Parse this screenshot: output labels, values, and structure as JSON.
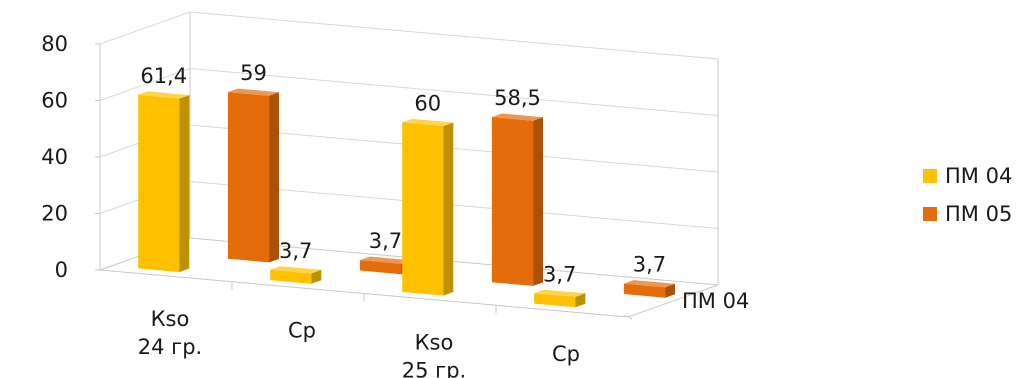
{
  "chart_data": {
    "type": "bar",
    "style": "3d-clustered-column",
    "categories": [
      "Кѕо\n24 гр.",
      "Ср",
      "Кѕо\n25 гр.",
      "Ср"
    ],
    "series": [
      {
        "name": "ПМ 04",
        "values": [
          61.4,
          3.7,
          60,
          3.7
        ],
        "labels": [
          "61,4",
          "3,7",
          "60",
          "3,7"
        ],
        "color": "#FFC000"
      },
      {
        "name": "ПМ 05",
        "values": [
          59,
          3.7,
          58.5,
          3.7
        ],
        "labels": [
          "59",
          "3,7",
          "58,5",
          "3,7"
        ],
        "color": "#E46C0A"
      }
    ],
    "ylim": [
      0,
      80
    ],
    "yticks": [
      "0",
      "20",
      "40",
      "60",
      "80"
    ],
    "depth_label": "ПМ 04",
    "legend_position": "right",
    "grid": true
  }
}
